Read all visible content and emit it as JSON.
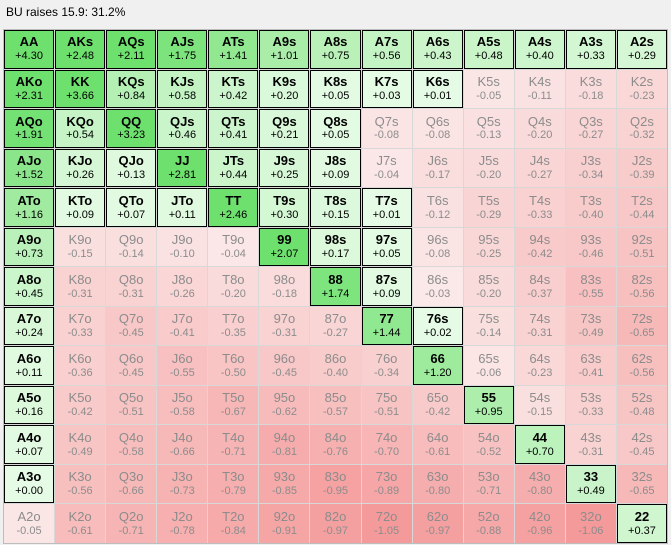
{
  "title": "BU raises 15.9: 31.2%",
  "colors": {
    "raise_strong": "#6ee06e",
    "raise_light": "#e6fbe6",
    "fold_light": "#fbeaea",
    "fold_strong": "#f59a9a"
  },
  "rows": [
    [
      {
        "h": "AA",
        "v": "+4.30",
        "in": true
      },
      {
        "h": "AKs",
        "v": "+2.48",
        "in": true
      },
      {
        "h": "AQs",
        "v": "+2.11",
        "in": true
      },
      {
        "h": "AJs",
        "v": "+1.75",
        "in": true
      },
      {
        "h": "ATs",
        "v": "+1.41",
        "in": true
      },
      {
        "h": "A9s",
        "v": "+1.01",
        "in": true
      },
      {
        "h": "A8s",
        "v": "+0.75",
        "in": true
      },
      {
        "h": "A7s",
        "v": "+0.56",
        "in": true
      },
      {
        "h": "A6s",
        "v": "+0.43",
        "in": true
      },
      {
        "h": "A5s",
        "v": "+0.48",
        "in": true
      },
      {
        "h": "A4s",
        "v": "+0.40",
        "in": true
      },
      {
        "h": "A3s",
        "v": "+0.33",
        "in": true
      },
      {
        "h": "A2s",
        "v": "+0.29",
        "in": true
      }
    ],
    [
      {
        "h": "AKo",
        "v": "+2.31",
        "in": true
      },
      {
        "h": "KK",
        "v": "+3.66",
        "in": true
      },
      {
        "h": "KQs",
        "v": "+0.84",
        "in": true
      },
      {
        "h": "KJs",
        "v": "+0.58",
        "in": true
      },
      {
        "h": "KTs",
        "v": "+0.42",
        "in": true
      },
      {
        "h": "K9s",
        "v": "+0.20",
        "in": true
      },
      {
        "h": "K8s",
        "v": "+0.05",
        "in": true
      },
      {
        "h": "K7s",
        "v": "+0.03",
        "in": true
      },
      {
        "h": "K6s",
        "v": "+0.01",
        "in": true
      },
      {
        "h": "K5s",
        "v": "-0.05",
        "in": false
      },
      {
        "h": "K4s",
        "v": "-0.11",
        "in": false
      },
      {
        "h": "K3s",
        "v": "-0.18",
        "in": false
      },
      {
        "h": "K2s",
        "v": "-0.23",
        "in": false
      }
    ],
    [
      {
        "h": "AQo",
        "v": "+1.91",
        "in": true
      },
      {
        "h": "KQo",
        "v": "+0.54",
        "in": true
      },
      {
        "h": "QQ",
        "v": "+3.23",
        "in": true
      },
      {
        "h": "QJs",
        "v": "+0.46",
        "in": true
      },
      {
        "h": "QTs",
        "v": "+0.41",
        "in": true
      },
      {
        "h": "Q9s",
        "v": "+0.21",
        "in": true
      },
      {
        "h": "Q8s",
        "v": "+0.05",
        "in": true
      },
      {
        "h": "Q7s",
        "v": "-0.08",
        "in": false
      },
      {
        "h": "Q6s",
        "v": "-0.08",
        "in": false
      },
      {
        "h": "Q5s",
        "v": "-0.13",
        "in": false
      },
      {
        "h": "Q4s",
        "v": "-0.20",
        "in": false
      },
      {
        "h": "Q3s",
        "v": "-0.27",
        "in": false
      },
      {
        "h": "Q2s",
        "v": "-0.32",
        "in": false
      }
    ],
    [
      {
        "h": "AJo",
        "v": "+1.52",
        "in": true
      },
      {
        "h": "KJo",
        "v": "+0.26",
        "in": true
      },
      {
        "h": "QJo",
        "v": "+0.13",
        "in": true
      },
      {
        "h": "JJ",
        "v": "+2.81",
        "in": true
      },
      {
        "h": "JTs",
        "v": "+0.44",
        "in": true
      },
      {
        "h": "J9s",
        "v": "+0.25",
        "in": true
      },
      {
        "h": "J8s",
        "v": "+0.09",
        "in": true
      },
      {
        "h": "J7s",
        "v": "-0.04",
        "in": false
      },
      {
        "h": "J6s",
        "v": "-0.17",
        "in": false
      },
      {
        "h": "J5s",
        "v": "-0.20",
        "in": false
      },
      {
        "h": "J4s",
        "v": "-0.27",
        "in": false
      },
      {
        "h": "J3s",
        "v": "-0.34",
        "in": false
      },
      {
        "h": "J2s",
        "v": "-0.39",
        "in": false
      }
    ],
    [
      {
        "h": "ATo",
        "v": "+1.16",
        "in": true
      },
      {
        "h": "KTo",
        "v": "+0.09",
        "in": true
      },
      {
        "h": "QTo",
        "v": "+0.07",
        "in": true
      },
      {
        "h": "JTo",
        "v": "+0.11",
        "in": true
      },
      {
        "h": "TT",
        "v": "+2.46",
        "in": true
      },
      {
        "h": "T9s",
        "v": "+0.30",
        "in": true
      },
      {
        "h": "T8s",
        "v": "+0.15",
        "in": true
      },
      {
        "h": "T7s",
        "v": "+0.01",
        "in": true
      },
      {
        "h": "T6s",
        "v": "-0.12",
        "in": false
      },
      {
        "h": "T5s",
        "v": "-0.29",
        "in": false
      },
      {
        "h": "T4s",
        "v": "-0.33",
        "in": false
      },
      {
        "h": "T3s",
        "v": "-0.40",
        "in": false
      },
      {
        "h": "T2s",
        "v": "-0.44",
        "in": false
      }
    ],
    [
      {
        "h": "A9o",
        "v": "+0.73",
        "in": true
      },
      {
        "h": "K9o",
        "v": "-0.15",
        "in": false
      },
      {
        "h": "Q9o",
        "v": "-0.14",
        "in": false
      },
      {
        "h": "J9o",
        "v": "-0.10",
        "in": false
      },
      {
        "h": "T9o",
        "v": "-0.04",
        "in": false
      },
      {
        "h": "99",
        "v": "+2.07",
        "in": true
      },
      {
        "h": "98s",
        "v": "+0.17",
        "in": true
      },
      {
        "h": "97s",
        "v": "+0.05",
        "in": true
      },
      {
        "h": "96s",
        "v": "-0.08",
        "in": false
      },
      {
        "h": "95s",
        "v": "-0.25",
        "in": false
      },
      {
        "h": "94s",
        "v": "-0.42",
        "in": false
      },
      {
        "h": "93s",
        "v": "-0.46",
        "in": false
      },
      {
        "h": "92s",
        "v": "-0.51",
        "in": false
      }
    ],
    [
      {
        "h": "A8o",
        "v": "+0.45",
        "in": true
      },
      {
        "h": "K8o",
        "v": "-0.31",
        "in": false
      },
      {
        "h": "Q8o",
        "v": "-0.31",
        "in": false
      },
      {
        "h": "J8o",
        "v": "-0.26",
        "in": false
      },
      {
        "h": "T8o",
        "v": "-0.20",
        "in": false
      },
      {
        "h": "98o",
        "v": "-0.18",
        "in": false
      },
      {
        "h": "88",
        "v": "+1.74",
        "in": true
      },
      {
        "h": "87s",
        "v": "+0.09",
        "in": true
      },
      {
        "h": "86s",
        "v": "-0.03",
        "in": false
      },
      {
        "h": "85s",
        "v": "-0.20",
        "in": false
      },
      {
        "h": "84s",
        "v": "-0.37",
        "in": false
      },
      {
        "h": "83s",
        "v": "-0.55",
        "in": false
      },
      {
        "h": "82s",
        "v": "-0.56",
        "in": false
      }
    ],
    [
      {
        "h": "A7o",
        "v": "+0.24",
        "in": true
      },
      {
        "h": "K7o",
        "v": "-0.33",
        "in": false
      },
      {
        "h": "Q7o",
        "v": "-0.45",
        "in": false
      },
      {
        "h": "J7o",
        "v": "-0.41",
        "in": false
      },
      {
        "h": "T7o",
        "v": "-0.35",
        "in": false
      },
      {
        "h": "97o",
        "v": "-0.31",
        "in": false
      },
      {
        "h": "87o",
        "v": "-0.27",
        "in": false
      },
      {
        "h": "77",
        "v": "+1.44",
        "in": true
      },
      {
        "h": "76s",
        "v": "+0.02",
        "in": true
      },
      {
        "h": "75s",
        "v": "-0.14",
        "in": false
      },
      {
        "h": "74s",
        "v": "-0.31",
        "in": false
      },
      {
        "h": "73s",
        "v": "-0.49",
        "in": false
      },
      {
        "h": "72s",
        "v": "-0.65",
        "in": false
      }
    ],
    [
      {
        "h": "A6o",
        "v": "+0.11",
        "in": true
      },
      {
        "h": "K6o",
        "v": "-0.36",
        "in": false
      },
      {
        "h": "Q6o",
        "v": "-0.45",
        "in": false
      },
      {
        "h": "J6o",
        "v": "-0.55",
        "in": false
      },
      {
        "h": "T6o",
        "v": "-0.50",
        "in": false
      },
      {
        "h": "96o",
        "v": "-0.45",
        "in": false
      },
      {
        "h": "86o",
        "v": "-0.40",
        "in": false
      },
      {
        "h": "76o",
        "v": "-0.34",
        "in": false
      },
      {
        "h": "66",
        "v": "+1.20",
        "in": true
      },
      {
        "h": "65s",
        "v": "-0.06",
        "in": false
      },
      {
        "h": "64s",
        "v": "-0.23",
        "in": false
      },
      {
        "h": "63s",
        "v": "-0.41",
        "in": false
      },
      {
        "h": "62s",
        "v": "-0.56",
        "in": false
      }
    ],
    [
      {
        "h": "A5o",
        "v": "+0.16",
        "in": true
      },
      {
        "h": "K5o",
        "v": "-0.42",
        "in": false
      },
      {
        "h": "Q5o",
        "v": "-0.51",
        "in": false
      },
      {
        "h": "J5o",
        "v": "-0.58",
        "in": false
      },
      {
        "h": "T5o",
        "v": "-0.67",
        "in": false
      },
      {
        "h": "95o",
        "v": "-0.62",
        "in": false
      },
      {
        "h": "85o",
        "v": "-0.57",
        "in": false
      },
      {
        "h": "75o",
        "v": "-0.51",
        "in": false
      },
      {
        "h": "65o",
        "v": "-0.42",
        "in": false
      },
      {
        "h": "55",
        "v": "+0.95",
        "in": true
      },
      {
        "h": "54s",
        "v": "-0.15",
        "in": false
      },
      {
        "h": "53s",
        "v": "-0.33",
        "in": false
      },
      {
        "h": "52s",
        "v": "-0.48",
        "in": false
      }
    ],
    [
      {
        "h": "A4o",
        "v": "+0.07",
        "in": true
      },
      {
        "h": "K4o",
        "v": "-0.49",
        "in": false
      },
      {
        "h": "Q4o",
        "v": "-0.58",
        "in": false
      },
      {
        "h": "J4o",
        "v": "-0.66",
        "in": false
      },
      {
        "h": "T4o",
        "v": "-0.71",
        "in": false
      },
      {
        "h": "94o",
        "v": "-0.81",
        "in": false
      },
      {
        "h": "84o",
        "v": "-0.76",
        "in": false
      },
      {
        "h": "74o",
        "v": "-0.70",
        "in": false
      },
      {
        "h": "64o",
        "v": "-0.61",
        "in": false
      },
      {
        "h": "54o",
        "v": "-0.52",
        "in": false
      },
      {
        "h": "44",
        "v": "+0.70",
        "in": true
      },
      {
        "h": "43s",
        "v": "-0.31",
        "in": false
      },
      {
        "h": "42s",
        "v": "-0.45",
        "in": false
      }
    ],
    [
      {
        "h": "A3o",
        "v": "+0.00",
        "in": true
      },
      {
        "h": "K3o",
        "v": "-0.56",
        "in": false
      },
      {
        "h": "Q3o",
        "v": "-0.66",
        "in": false
      },
      {
        "h": "J3o",
        "v": "-0.73",
        "in": false
      },
      {
        "h": "T3o",
        "v": "-0.79",
        "in": false
      },
      {
        "h": "93o",
        "v": "-0.85",
        "in": false
      },
      {
        "h": "83o",
        "v": "-0.95",
        "in": false
      },
      {
        "h": "73o",
        "v": "-0.89",
        "in": false
      },
      {
        "h": "63o",
        "v": "-0.80",
        "in": false
      },
      {
        "h": "53o",
        "v": "-0.71",
        "in": false
      },
      {
        "h": "43o",
        "v": "-0.80",
        "in": false
      },
      {
        "h": "33",
        "v": "+0.49",
        "in": true
      },
      {
        "h": "32s",
        "v": "-0.65",
        "in": false
      }
    ],
    [
      {
        "h": "A2o",
        "v": "-0.05",
        "in": false
      },
      {
        "h": "K2o",
        "v": "-0.61",
        "in": false
      },
      {
        "h": "Q2o",
        "v": "-0.71",
        "in": false
      },
      {
        "h": "J2o",
        "v": "-0.78",
        "in": false
      },
      {
        "h": "T2o",
        "v": "-0.84",
        "in": false
      },
      {
        "h": "92o",
        "v": "-0.91",
        "in": false
      },
      {
        "h": "82o",
        "v": "-0.97",
        "in": false
      },
      {
        "h": "72o",
        "v": "-1.05",
        "in": false
      },
      {
        "h": "62o",
        "v": "-0.97",
        "in": false
      },
      {
        "h": "52o",
        "v": "-0.88",
        "in": false
      },
      {
        "h": "42o",
        "v": "-0.96",
        "in": false
      },
      {
        "h": "32o",
        "v": "-1.06",
        "in": false
      },
      {
        "h": "22",
        "v": "+0.37",
        "in": true
      }
    ]
  ]
}
